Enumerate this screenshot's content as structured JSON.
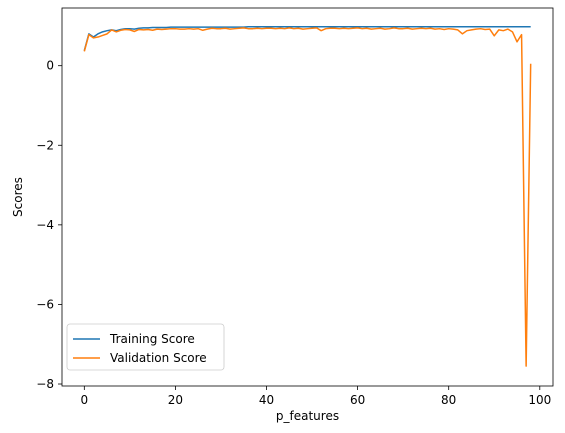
{
  "chart_data": {
    "type": "line",
    "xlabel": "p_features",
    "ylabel": "Scores",
    "xlim": [
      -4.9,
      102.9
    ],
    "ylim": [
      -8.05,
      1.45
    ],
    "xticks": [
      0,
      20,
      40,
      60,
      80,
      100
    ],
    "yticks": [
      -8,
      -6,
      -4,
      -2,
      0
    ],
    "xtick_labels": [
      "0",
      "20",
      "40",
      "60",
      "80",
      "100"
    ],
    "ytick_labels": [
      "−8",
      "−6",
      "−4",
      "−2",
      "0"
    ],
    "grid": false,
    "legend_position": "lower-left",
    "x": [
      0,
      1,
      2,
      3,
      4,
      5,
      6,
      7,
      8,
      9,
      10,
      11,
      12,
      13,
      14,
      15,
      16,
      17,
      18,
      19,
      20,
      21,
      22,
      23,
      24,
      25,
      26,
      27,
      28,
      29,
      30,
      31,
      32,
      33,
      34,
      35,
      36,
      37,
      38,
      39,
      40,
      41,
      42,
      43,
      44,
      45,
      46,
      47,
      48,
      49,
      50,
      51,
      52,
      53,
      54,
      55,
      56,
      57,
      58,
      59,
      60,
      61,
      62,
      63,
      64,
      65,
      66,
      67,
      68,
      69,
      70,
      71,
      72,
      73,
      74,
      75,
      76,
      77,
      78,
      79,
      80,
      81,
      82,
      83,
      84,
      85,
      86,
      87,
      88,
      89,
      90,
      91,
      92,
      93,
      94,
      95,
      96,
      97,
      98
    ],
    "series": [
      {
        "name": "Training Score",
        "color": "#1f77b4",
        "values": [
          0.38,
          0.8,
          0.72,
          0.8,
          0.85,
          0.88,
          0.9,
          0.88,
          0.91,
          0.93,
          0.93,
          0.92,
          0.94,
          0.95,
          0.95,
          0.96,
          0.96,
          0.96,
          0.96,
          0.97,
          0.97,
          0.97,
          0.97,
          0.97,
          0.97,
          0.97,
          0.97,
          0.97,
          0.97,
          0.97,
          0.97,
          0.97,
          0.97,
          0.97,
          0.97,
          0.97,
          0.98,
          0.98,
          0.98,
          0.98,
          0.98,
          0.98,
          0.98,
          0.98,
          0.98,
          0.98,
          0.98,
          0.98,
          0.98,
          0.98,
          0.98,
          0.98,
          0.98,
          0.98,
          0.98,
          0.98,
          0.98,
          0.98,
          0.98,
          0.98,
          0.98,
          0.98,
          0.98,
          0.98,
          0.98,
          0.98,
          0.98,
          0.98,
          0.98,
          0.98,
          0.98,
          0.98,
          0.98,
          0.98,
          0.98,
          0.98,
          0.98,
          0.98,
          0.98,
          0.98,
          0.98,
          0.98,
          0.98,
          0.98,
          0.98,
          0.98,
          0.98,
          0.98,
          0.98,
          0.98,
          0.98,
          0.98,
          0.98,
          0.98,
          0.98,
          0.98,
          0.98,
          0.98,
          0.98
        ]
      },
      {
        "name": "Validation Score",
        "color": "#ff7f0e",
        "values": [
          0.36,
          0.78,
          0.7,
          0.72,
          0.76,
          0.8,
          0.9,
          0.85,
          0.89,
          0.91,
          0.9,
          0.86,
          0.91,
          0.9,
          0.91,
          0.89,
          0.92,
          0.91,
          0.92,
          0.93,
          0.93,
          0.92,
          0.92,
          0.93,
          0.92,
          0.93,
          0.89,
          0.92,
          0.94,
          0.93,
          0.93,
          0.94,
          0.92,
          0.93,
          0.94,
          0.95,
          0.93,
          0.93,
          0.94,
          0.93,
          0.94,
          0.94,
          0.93,
          0.94,
          0.93,
          0.95,
          0.93,
          0.94,
          0.92,
          0.93,
          0.94,
          0.95,
          0.88,
          0.93,
          0.94,
          0.94,
          0.93,
          0.94,
          0.93,
          0.94,
          0.95,
          0.93,
          0.94,
          0.92,
          0.93,
          0.94,
          0.92,
          0.93,
          0.95,
          0.93,
          0.93,
          0.94,
          0.92,
          0.93,
          0.94,
          0.93,
          0.94,
          0.92,
          0.93,
          0.91,
          0.93,
          0.92,
          0.9,
          0.8,
          0.88,
          0.9,
          0.92,
          0.93,
          0.91,
          0.92,
          0.75,
          0.9,
          0.88,
          0.92,
          0.85,
          0.6,
          0.78,
          -7.55,
          0.05
        ]
      }
    ]
  }
}
